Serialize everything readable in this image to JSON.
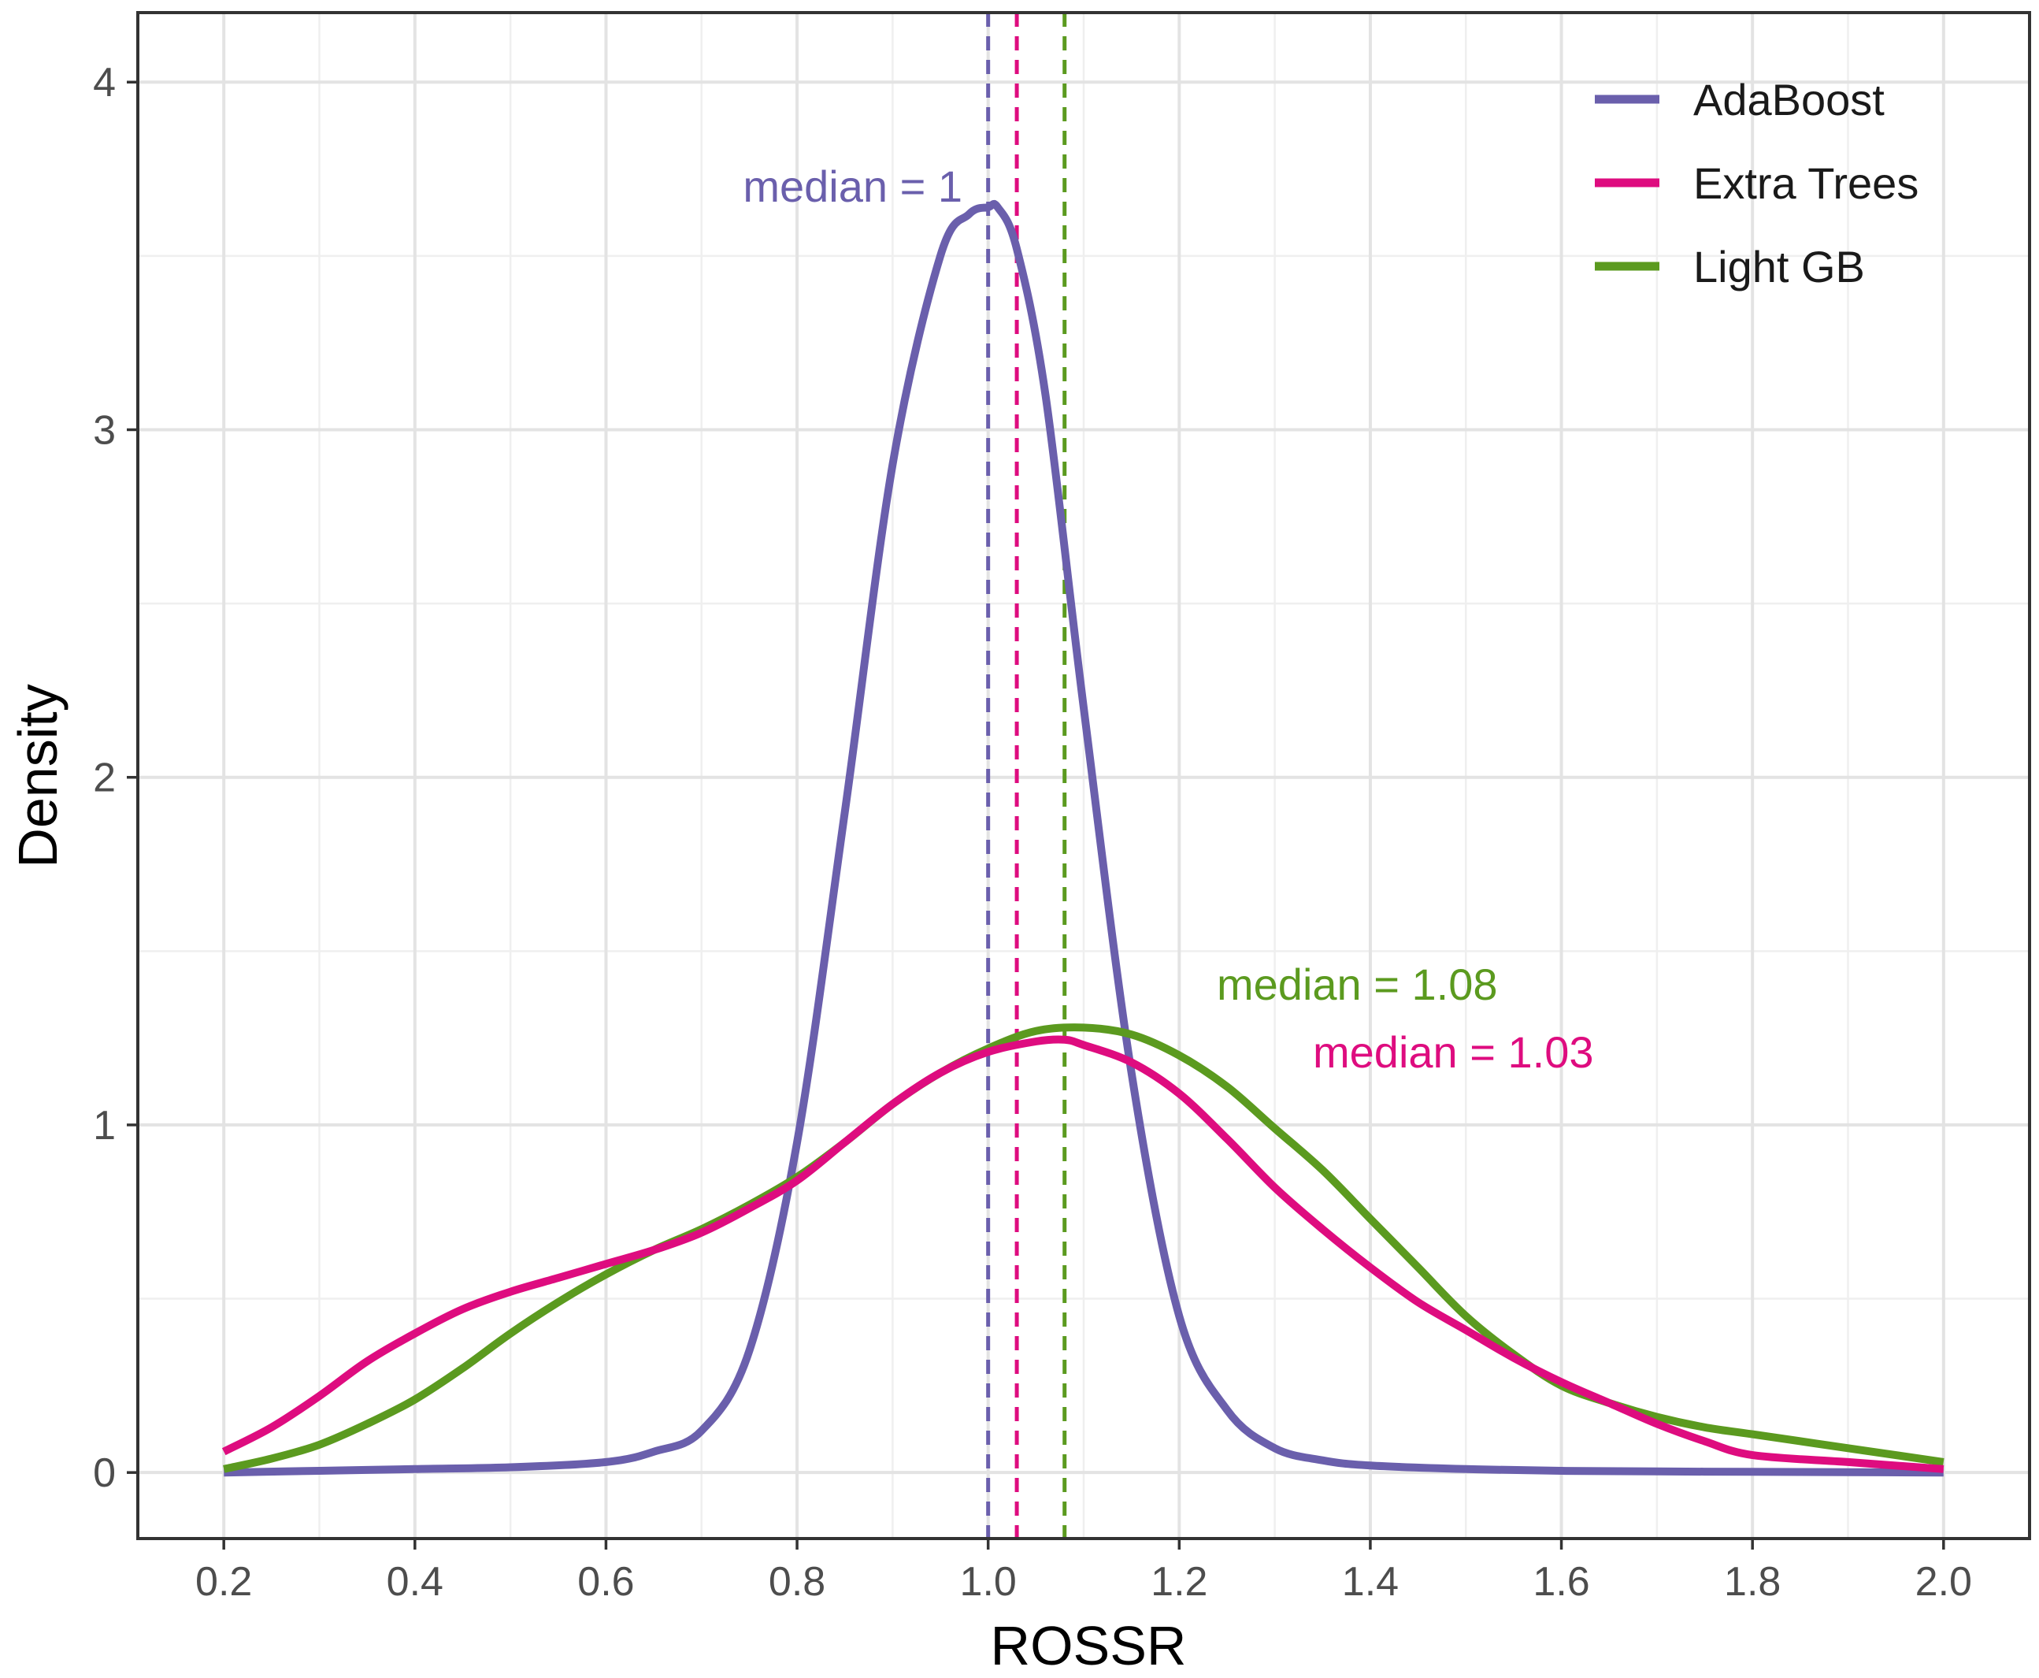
{
  "chart_data": {
    "type": "line",
    "subtype": "density",
    "title": "",
    "xlabel": "ROSSR",
    "ylabel": "Density",
    "xlim": [
      0.11,
      2.09
    ],
    "ylim": [
      -0.19,
      4.2
    ],
    "x_ticks": [
      "0.2",
      "0.4",
      "0.6",
      "0.8",
      "1.0",
      "1.2",
      "1.4",
      "1.6",
      "1.8",
      "2.0"
    ],
    "x_tick_values": [
      0.2,
      0.4,
      0.6,
      0.8,
      1.0,
      1.2,
      1.4,
      1.6,
      1.8,
      2.0
    ],
    "y_ticks": [
      "0",
      "1",
      "2",
      "3",
      "4"
    ],
    "y_tick_values": [
      0,
      1,
      2,
      3,
      4
    ],
    "grid": true,
    "legend_position": "top-right",
    "series": [
      {
        "name": "AdaBoost",
        "color": "#6a5fac",
        "median": 1.0,
        "median_label": "median = 1",
        "x": [
          0.2,
          0.3,
          0.4,
          0.5,
          0.6,
          0.65,
          0.7,
          0.75,
          0.8,
          0.85,
          0.9,
          0.95,
          0.98,
          1.0,
          1.01,
          1.03,
          1.06,
          1.1,
          1.15,
          1.2,
          1.25,
          1.3,
          1.35,
          1.4,
          1.5,
          1.6,
          1.7,
          1.8,
          1.9,
          2.0
        ],
        "values": [
          0.0,
          0.005,
          0.01,
          0.015,
          0.03,
          0.06,
          0.12,
          0.35,
          0.95,
          1.9,
          2.9,
          3.5,
          3.62,
          3.64,
          3.64,
          3.52,
          3.1,
          2.2,
          1.15,
          0.45,
          0.18,
          0.07,
          0.035,
          0.02,
          0.01,
          0.005,
          0.003,
          0.002,
          0.001,
          0.0
        ]
      },
      {
        "name": "Extra Trees",
        "color": "#de0c7f",
        "median": 1.03,
        "median_label": "median = 1.03",
        "x": [
          0.2,
          0.25,
          0.3,
          0.35,
          0.4,
          0.45,
          0.5,
          0.55,
          0.6,
          0.65,
          0.7,
          0.75,
          0.8,
          0.85,
          0.9,
          0.95,
          1.0,
          1.05,
          1.08,
          1.1,
          1.15,
          1.2,
          1.25,
          1.3,
          1.35,
          1.4,
          1.45,
          1.5,
          1.55,
          1.6,
          1.65,
          1.7,
          1.75,
          1.8,
          1.9,
          2.0
        ],
        "values": [
          0.06,
          0.13,
          0.22,
          0.32,
          0.4,
          0.47,
          0.52,
          0.56,
          0.6,
          0.64,
          0.69,
          0.76,
          0.84,
          0.95,
          1.06,
          1.15,
          1.21,
          1.24,
          1.245,
          1.23,
          1.18,
          1.09,
          0.96,
          0.82,
          0.7,
          0.59,
          0.49,
          0.41,
          0.33,
          0.26,
          0.2,
          0.14,
          0.09,
          0.05,
          0.03,
          0.01
        ]
      },
      {
        "name": "Light GB",
        "color": "#5b9a1f",
        "median": 1.08,
        "median_label": "median = 1.08",
        "x": [
          0.2,
          0.25,
          0.3,
          0.35,
          0.4,
          0.45,
          0.5,
          0.55,
          0.6,
          0.65,
          0.7,
          0.75,
          0.8,
          0.85,
          0.9,
          0.95,
          1.0,
          1.05,
          1.1,
          1.15,
          1.2,
          1.25,
          1.3,
          1.35,
          1.4,
          1.45,
          1.5,
          1.55,
          1.6,
          1.65,
          1.7,
          1.75,
          1.8,
          1.9,
          2.0
        ],
        "values": [
          0.01,
          0.04,
          0.08,
          0.14,
          0.21,
          0.3,
          0.4,
          0.49,
          0.57,
          0.64,
          0.7,
          0.77,
          0.85,
          0.95,
          1.06,
          1.15,
          1.22,
          1.27,
          1.28,
          1.26,
          1.2,
          1.11,
          0.99,
          0.87,
          0.73,
          0.59,
          0.45,
          0.34,
          0.25,
          0.2,
          0.16,
          0.13,
          0.11,
          0.07,
          0.03
        ]
      }
    ]
  }
}
